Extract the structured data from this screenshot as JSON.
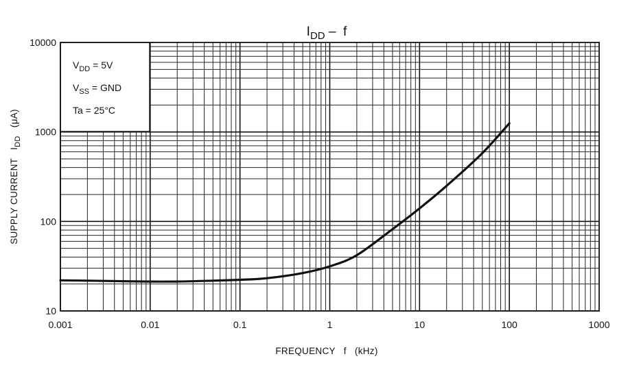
{
  "chart_data": {
    "type": "line",
    "title": {
      "main": "I",
      "sub": "DD",
      "rest": " –  f"
    },
    "xlabel": "FREQUENCY   f   (kHz)",
    "ylabel": {
      "pre": "SUPPLY CURRENT   I",
      "sub": "DD",
      "post": "   (μA)"
    },
    "x_scale": "log",
    "y_scale": "log",
    "xlim": [
      0.001,
      1000
    ],
    "ylim": [
      10,
      10000
    ],
    "x_ticks": [
      {
        "value": 0.001,
        "label": "0.001"
      },
      {
        "value": 0.01,
        "label": "0.01"
      },
      {
        "value": 0.1,
        "label": "0.1"
      },
      {
        "value": 1,
        "label": "1"
      },
      {
        "value": 10,
        "label": "10"
      },
      {
        "value": 100,
        "label": "100"
      },
      {
        "value": 1000,
        "label": "1000"
      }
    ],
    "y_ticks": [
      {
        "value": 10,
        "label": "10"
      },
      {
        "value": 100,
        "label": "100"
      },
      {
        "value": 1000,
        "label": "1000"
      },
      {
        "value": 10000,
        "label": "10000"
      }
    ],
    "grid": true,
    "conditions": [
      {
        "pre": "V",
        "sub": "DD",
        "post": " = 5V"
      },
      {
        "pre": "V",
        "sub": "SS",
        "post": " = GND"
      },
      {
        "pre": "Ta = 25°C",
        "sub": "",
        "post": ""
      }
    ],
    "series": [
      {
        "color": "#111111",
        "points": [
          [
            0.001,
            22
          ],
          [
            0.002,
            21.8
          ],
          [
            0.005,
            21.5
          ],
          [
            0.01,
            21.3
          ],
          [
            0.02,
            21.3
          ],
          [
            0.05,
            21.8
          ],
          [
            0.1,
            22.3
          ],
          [
            0.2,
            23.2
          ],
          [
            0.5,
            26.5
          ],
          [
            1,
            31.5
          ],
          [
            2,
            42
          ],
          [
            5,
            82
          ],
          [
            10,
            140
          ],
          [
            20,
            250
          ],
          [
            50,
            580
          ],
          [
            100,
            1250
          ]
        ]
      }
    ]
  }
}
